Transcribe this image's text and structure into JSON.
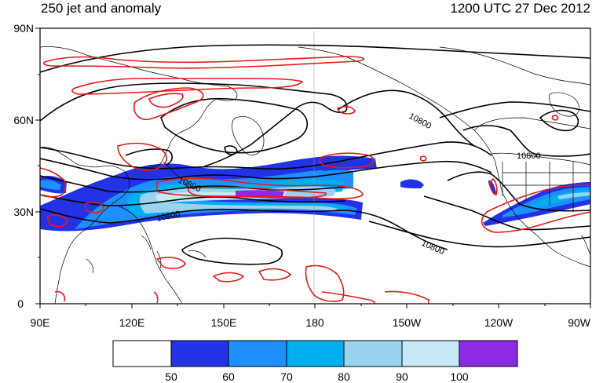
{
  "header": {
    "title": "250 jet and anomaly",
    "valid_time": "1200 UTC 27 Dec 2012"
  },
  "map": {
    "lat_ticks": [
      "90N",
      "60N",
      "30N",
      "0"
    ],
    "lon_ticks": [
      "90E",
      "120E",
      "150E",
      "180",
      "150W",
      "120W",
      "90W"
    ],
    "contour_labels": [
      "10800",
      "10800",
      "10800",
      "10800",
      "10800"
    ],
    "colors": {
      "jet_50_60": "#2233e6",
      "jet_60_70": "#1e8fff",
      "jet_70_80": "#00b0f0",
      "jet_80_90": "#99d3ef",
      "jet_90_100": "#c6e9f7",
      "jet_100_plus": "#8b2be3",
      "anomaly": "#e81919",
      "height": "#000000",
      "coast": "#000000"
    }
  },
  "colorbar": {
    "labels": [
      "50",
      "60",
      "70",
      "80",
      "90",
      "100"
    ],
    "colors": [
      "#ffffff",
      "#2233e6",
      "#1e8fff",
      "#00b0f0",
      "#99d3ef",
      "#c6e9f7",
      "#8b2be3"
    ]
  }
}
